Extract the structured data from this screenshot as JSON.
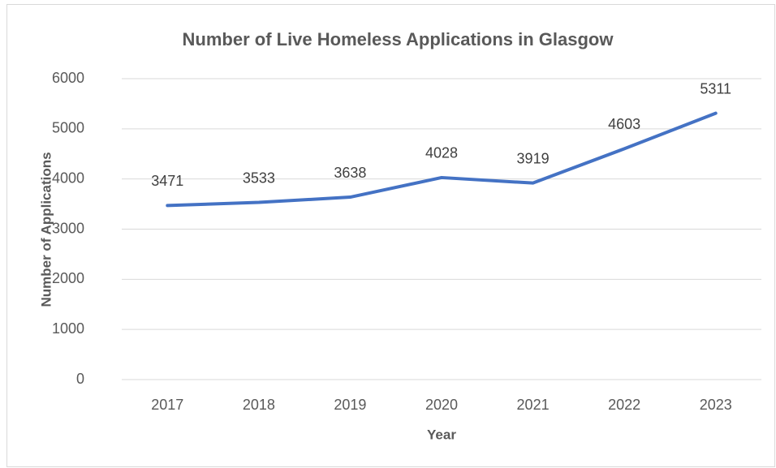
{
  "chart_data": {
    "type": "line",
    "title": "Number of Live Homeless Applications in Glasgow",
    "x_label": "Year",
    "y_label": "Number of Applications",
    "categories": [
      "2017",
      "2018",
      "2019",
      "2020",
      "2021",
      "2022",
      "2023"
    ],
    "series": [
      {
        "name": "Number of Live Homeless Applications",
        "color": "#4472c4",
        "values": [
          3471,
          3533,
          3638,
          4028,
          3919,
          4603,
          5311
        ]
      }
    ],
    "ylim": [
      0,
      6000
    ],
    "yticks": [
      0,
      1000,
      2000,
      3000,
      4000,
      5000,
      6000
    ],
    "grid": true
  }
}
